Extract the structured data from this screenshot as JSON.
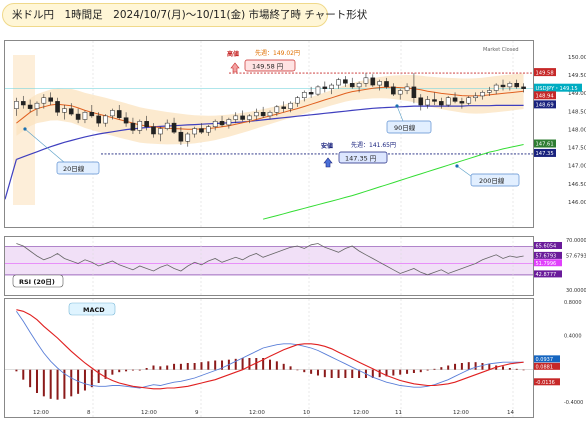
{
  "header": {
    "title": "米ドル円　1時間足　2024/10/7(月)～10/11(金) 市場終了時 チャート形状"
  },
  "chart_data": [
    {
      "type": "candlestick",
      "panel": "price",
      "watermark": "Market Closed",
      "x_ticks": [
        "12:00",
        "8",
        "12:00",
        "9",
        "12:00",
        "10",
        "12:00",
        "11",
        "12:00",
        "14"
      ],
      "ylim": [
        145.5,
        150.3
      ],
      "y_ticks": [
        "150.00",
        "149.50",
        "149.00",
        "148.50",
        "148.00",
        "147.50",
        "147.00",
        "146.50",
        "146.00"
      ],
      "price_tags": [
        {
          "label": "149.58",
          "value": 149.58,
          "color": "#c62828"
        },
        {
          "label": "USDJPY・149.15",
          "value": 149.15,
          "color": "#00acc1"
        },
        {
          "label": "148.94",
          "value": 148.94,
          "color": "#c62828"
        },
        {
          "label": "148.69",
          "value": 148.69,
          "color": "#1a237e"
        },
        {
          "label": "147.61",
          "value": 147.61,
          "color": "#2e7d32"
        },
        {
          "label": "147.35",
          "value": 147.35,
          "color": "#1a237e"
        }
      ],
      "annotations": {
        "high_label": "高値",
        "high_prev_week": "先週：149.02円",
        "high_value": "149.58 円",
        "low_label": "安値",
        "low_prev_week": "先週：141.65円",
        "low_value": "147.35 円",
        "ma20": "20日線",
        "ma90": "90日線",
        "ma200": "200日線"
      },
      "candles": [
        [
          148.6,
          148.9,
          148.4,
          148.8
        ],
        [
          148.8,
          148.95,
          148.6,
          148.7
        ],
        [
          148.7,
          148.85,
          148.5,
          148.6
        ],
        [
          148.6,
          148.8,
          148.4,
          148.75
        ],
        [
          148.75,
          149.0,
          148.6,
          148.9
        ],
        [
          148.9,
          149.05,
          148.7,
          148.8
        ],
        [
          148.8,
          148.9,
          148.4,
          148.5
        ],
        [
          148.5,
          148.7,
          148.3,
          148.6
        ],
        [
          148.6,
          148.75,
          148.4,
          148.45
        ],
        [
          148.45,
          148.6,
          148.2,
          148.3
        ],
        [
          148.3,
          148.55,
          148.2,
          148.5
        ],
        [
          148.5,
          148.7,
          148.35,
          148.4
        ],
        [
          148.4,
          148.5,
          148.1,
          148.2
        ],
        [
          148.2,
          148.45,
          148.1,
          148.4
        ],
        [
          148.4,
          148.6,
          148.3,
          148.55
        ],
        [
          148.55,
          148.7,
          148.3,
          148.35
        ],
        [
          148.35,
          148.5,
          148.1,
          148.2
        ],
        [
          148.2,
          148.35,
          147.9,
          148.0
        ],
        [
          148.0,
          148.3,
          147.9,
          148.25
        ],
        [
          148.25,
          148.4,
          148.0,
          148.1
        ],
        [
          148.1,
          148.2,
          147.8,
          147.9
        ],
        [
          147.9,
          148.1,
          147.7,
          148.05
        ],
        [
          148.05,
          148.3,
          148.0,
          148.2
        ],
        [
          148.2,
          148.35,
          147.9,
          147.95
        ],
        [
          147.95,
          148.1,
          147.6,
          147.7
        ],
        [
          147.7,
          147.95,
          147.55,
          147.9
        ],
        [
          147.9,
          148.1,
          147.8,
          148.05
        ],
        [
          148.05,
          148.2,
          147.9,
          147.95
        ],
        [
          147.95,
          148.15,
          147.85,
          148.1
        ],
        [
          148.1,
          148.3,
          148.0,
          148.25
        ],
        [
          148.25,
          148.4,
          148.1,
          148.15
        ],
        [
          148.15,
          148.35,
          148.05,
          148.3
        ],
        [
          148.3,
          148.5,
          148.2,
          148.4
        ],
        [
          148.4,
          148.55,
          148.25,
          148.3
        ],
        [
          148.3,
          148.45,
          148.2,
          148.4
        ],
        [
          148.4,
          148.6,
          148.3,
          148.5
        ],
        [
          148.5,
          148.65,
          148.35,
          148.4
        ],
        [
          148.4,
          148.55,
          148.3,
          148.5
        ],
        [
          148.5,
          148.7,
          148.4,
          148.65
        ],
        [
          148.65,
          148.8,
          148.5,
          148.6
        ],
        [
          148.6,
          148.8,
          148.5,
          148.75
        ],
        [
          148.75,
          148.95,
          148.65,
          148.9
        ],
        [
          148.9,
          149.1,
          148.8,
          149.05
        ],
        [
          149.05,
          149.2,
          148.9,
          149.0
        ],
        [
          149.0,
          149.25,
          148.95,
          149.2
        ],
        [
          149.2,
          149.35,
          149.05,
          149.15
        ],
        [
          149.15,
          149.3,
          149.0,
          149.25
        ],
        [
          149.25,
          149.45,
          149.15,
          149.4
        ],
        [
          149.4,
          149.5,
          149.2,
          149.3
        ],
        [
          149.3,
          149.45,
          149.15,
          149.2
        ],
        [
          149.2,
          149.35,
          149.05,
          149.3
        ],
        [
          149.3,
          149.58,
          149.2,
          149.45
        ],
        [
          149.45,
          149.55,
          149.2,
          149.25
        ],
        [
          149.25,
          149.4,
          149.1,
          149.35
        ],
        [
          149.35,
          149.45,
          149.15,
          149.2
        ],
        [
          149.2,
          149.3,
          148.95,
          149.0
        ],
        [
          149.0,
          149.15,
          148.85,
          149.1
        ],
        [
          149.1,
          149.3,
          149.0,
          149.2
        ],
        [
          149.2,
          149.58,
          148.75,
          148.9
        ],
        [
          148.9,
          149.0,
          148.55,
          148.7
        ],
        [
          148.7,
          148.95,
          148.6,
          148.85
        ],
        [
          148.85,
          149.05,
          148.7,
          148.8
        ],
        [
          148.8,
          148.9,
          148.6,
          148.7
        ],
        [
          148.7,
          148.95,
          148.65,
          148.9
        ],
        [
          148.9,
          149.05,
          148.75,
          148.8
        ],
        [
          148.8,
          148.9,
          148.6,
          148.75
        ],
        [
          148.75,
          148.95,
          148.7,
          148.9
        ],
        [
          148.9,
          149.05,
          148.8,
          148.95
        ],
        [
          148.95,
          149.1,
          148.85,
          149.05
        ],
        [
          149.05,
          149.2,
          148.95,
          149.1
        ],
        [
          149.1,
          149.3,
          149.0,
          149.25
        ],
        [
          149.25,
          149.4,
          149.1,
          149.2
        ],
        [
          149.2,
          149.35,
          149.1,
          149.3
        ],
        [
          149.3,
          149.4,
          149.15,
          149.2
        ],
        [
          149.2,
          149.3,
          149.05,
          149.15
        ]
      ],
      "ma20": [
        148.2,
        148.35,
        148.5,
        148.6,
        148.65,
        148.7,
        148.72,
        148.7,
        148.68,
        148.62,
        148.55,
        148.5,
        148.45,
        148.4,
        148.35,
        148.3,
        148.25,
        148.2,
        148.15,
        148.12,
        148.1,
        148.08,
        148.06,
        148.05,
        148.04,
        148.03,
        148.03,
        148.04,
        148.05,
        148.07,
        148.1,
        148.13,
        148.17,
        148.21,
        148.25,
        148.3,
        148.35,
        148.4,
        148.45,
        148.5,
        148.55,
        148.6,
        148.66,
        148.72,
        148.78,
        148.84,
        148.9,
        148.96,
        149.02,
        149.07,
        149.1,
        149.13,
        149.16,
        149.18,
        149.19,
        149.19,
        149.18,
        149.17,
        149.15,
        149.12,
        149.08,
        149.05,
        149.02,
        149.0,
        148.98,
        148.96,
        148.95,
        148.95,
        148.96,
        148.98,
        149.0,
        149.02,
        149.04,
        149.06,
        149.08
      ],
      "ma90": [
        147.2,
        147.27,
        147.34,
        147.41,
        147.48,
        147.55,
        147.61,
        147.67,
        147.72,
        147.77,
        147.82,
        147.86,
        147.9,
        147.93,
        147.96,
        147.99,
        148.02,
        148.04,
        148.06,
        148.08,
        148.1,
        148.11,
        148.12,
        148.13,
        148.14,
        148.15,
        148.16,
        148.17,
        148.18,
        148.19,
        148.2,
        148.21,
        148.22,
        148.23,
        148.25,
        148.27,
        148.29,
        148.31,
        148.33,
        148.35,
        148.37,
        148.39,
        148.41,
        148.43,
        148.45,
        148.47,
        148.49,
        148.51,
        148.53,
        148.55,
        148.57,
        148.59,
        148.61,
        148.62,
        148.63,
        148.64,
        148.65,
        148.66,
        148.67,
        148.67,
        148.67,
        148.67,
        148.67,
        148.67,
        148.67,
        148.67,
        148.68,
        148.68,
        148.68,
        148.68,
        148.69,
        148.69,
        148.69,
        148.69,
        148.69
      ],
      "ma200": [
        null,
        null,
        null,
        null,
        null,
        null,
        null,
        null,
        null,
        null,
        null,
        null,
        null,
        null,
        null,
        null,
        null,
        null,
        null,
        null,
        null,
        null,
        null,
        null,
        null,
        null,
        null,
        null,
        null,
        null,
        null,
        null,
        null,
        null,
        null,
        null,
        145.55,
        145.6,
        145.65,
        145.7,
        145.75,
        145.8,
        145.85,
        145.9,
        145.95,
        146.0,
        146.05,
        146.1,
        146.15,
        146.2,
        146.26,
        146.32,
        146.38,
        146.44,
        146.5,
        146.56,
        146.62,
        146.68,
        146.74,
        146.8,
        146.86,
        146.92,
        146.98,
        147.04,
        147.1,
        147.16,
        147.22,
        147.28,
        147.34,
        147.4,
        147.44,
        147.49,
        147.53,
        147.57,
        147.61
      ]
    },
    {
      "type": "line",
      "panel": "rsi",
      "label": "RSI (20日)",
      "ylim": [
        30,
        70
      ],
      "y_ticks": [
        "70.0000",
        "57.6793",
        "30.0000"
      ],
      "level_tags": [
        {
          "label": "65.6054",
          "value": 65.6054,
          "color": "#6a1b9a"
        },
        {
          "label": "57.6793",
          "value": 57.6793,
          "color": "#6a1b9a"
        },
        {
          "label": "51.7996",
          "value": 51.7996,
          "color": "#e040fb"
        },
        {
          "label": "42.8777",
          "value": 42.8777,
          "color": "#6a1b9a"
        }
      ],
      "values": [
        68,
        66,
        62,
        58,
        55,
        57,
        60,
        56,
        54,
        52,
        55,
        53,
        50,
        52,
        54,
        51,
        49,
        47,
        50,
        48,
        46,
        49,
        51,
        48,
        46,
        50,
        53,
        51,
        54,
        56,
        53,
        55,
        57,
        55,
        58,
        60,
        57,
        59,
        61,
        63,
        65,
        66,
        64,
        67,
        68,
        65,
        63,
        61,
        64,
        66,
        62,
        59,
        56,
        53,
        50,
        47,
        44,
        46,
        48,
        45,
        43,
        45,
        47,
        44,
        46,
        48,
        50,
        52,
        55,
        57,
        59,
        56,
        58,
        57,
        58
      ]
    },
    {
      "type": "line",
      "panel": "macd",
      "label": "MACD",
      "ylim": [
        -0.4,
        0.8
      ],
      "y_ticks": [
        "0.8000",
        "0.4000",
        "0.0937",
        "0.0881",
        "-0.0136",
        "-0.4000"
      ],
      "level_tags": [
        {
          "label": "0.0937",
          "value": 0.0937,
          "color": "#1565c0"
        },
        {
          "label": "0.0881",
          "value": 0.0881,
          "color": "#c62828"
        },
        {
          "label": "-0.0136",
          "value": -0.0136,
          "color": "#c62828"
        }
      ],
      "series": [
        {
          "values": [
            0.72,
            0.7,
            0.66,
            0.6,
            0.52,
            0.45,
            0.38,
            0.3,
            0.22,
            0.15,
            0.08,
            0.02,
            -0.04,
            -0.09,
            -0.13,
            -0.16,
            -0.18,
            -0.2,
            -0.21,
            -0.22,
            -0.23,
            -0.23,
            -0.22,
            -0.22,
            -0.21,
            -0.2,
            -0.18,
            -0.16,
            -0.14,
            -0.12,
            -0.09,
            -0.06,
            -0.03,
            0.0,
            0.04,
            0.08,
            0.12,
            0.16,
            0.2,
            0.24,
            0.27,
            0.3,
            0.31,
            0.31,
            0.3,
            0.28,
            0.25,
            0.21,
            0.17,
            0.13,
            0.09,
            0.05,
            0.01,
            -0.03,
            -0.07,
            -0.1,
            -0.13,
            -0.15,
            -0.17,
            -0.18,
            -0.19,
            -0.19,
            -0.18,
            -0.17,
            -0.15,
            -0.12,
            -0.09,
            -0.06,
            -0.03,
            0.0,
            0.03,
            0.05,
            0.07,
            0.08,
            0.09
          ]
        },
        {
          "values": [
            0.7,
            0.58,
            0.45,
            0.32,
            0.2,
            0.1,
            0.02,
            -0.05,
            -0.1,
            -0.14,
            -0.17,
            -0.19,
            -0.2,
            -0.2,
            -0.19,
            -0.19,
            -0.2,
            -0.21,
            -0.22,
            -0.2,
            -0.18,
            -0.19,
            -0.17,
            -0.15,
            -0.14,
            -0.12,
            -0.1,
            -0.07,
            -0.04,
            -0.01,
            0.02,
            0.06,
            0.1,
            0.14,
            0.18,
            0.22,
            0.26,
            0.28,
            0.3,
            0.31,
            0.31,
            0.3,
            0.28,
            0.26,
            0.23,
            0.19,
            0.15,
            0.11,
            0.07,
            0.03,
            -0.01,
            -0.05,
            -0.09,
            -0.12,
            -0.15,
            -0.17,
            -0.19,
            -0.2,
            -0.21,
            -0.21,
            -0.2,
            -0.18,
            -0.15,
            -0.12,
            -0.08,
            -0.04,
            0.0,
            0.03,
            0.05,
            0.07,
            0.08,
            0.09,
            0.09,
            0.09,
            0.09
          ]
        }
      ],
      "histogram": [
        -0.02,
        -0.12,
        -0.21,
        -0.28,
        -0.32,
        -0.35,
        -0.36,
        -0.35,
        -0.32,
        -0.29,
        -0.25,
        -0.21,
        -0.16,
        -0.11,
        -0.06,
        -0.03,
        -0.02,
        -0.01,
        -0.01,
        0.02,
        0.05,
        0.04,
        0.05,
        0.07,
        0.07,
        0.08,
        0.08,
        0.09,
        0.1,
        0.11,
        0.11,
        0.12,
        0.13,
        0.14,
        0.14,
        0.14,
        0.14,
        0.12,
        0.1,
        0.07,
        0.04,
        0.0,
        -0.03,
        -0.05,
        -0.07,
        -0.09,
        -0.1,
        -0.1,
        -0.1,
        -0.1,
        -0.1,
        -0.1,
        -0.1,
        -0.09,
        -0.08,
        -0.07,
        -0.06,
        -0.05,
        -0.04,
        -0.03,
        -0.01,
        0.01,
        0.03,
        0.05,
        0.07,
        0.08,
        0.09,
        0.09,
        0.08,
        0.07,
        0.05,
        0.04,
        0.02,
        0.01,
        0.0
      ]
    }
  ]
}
